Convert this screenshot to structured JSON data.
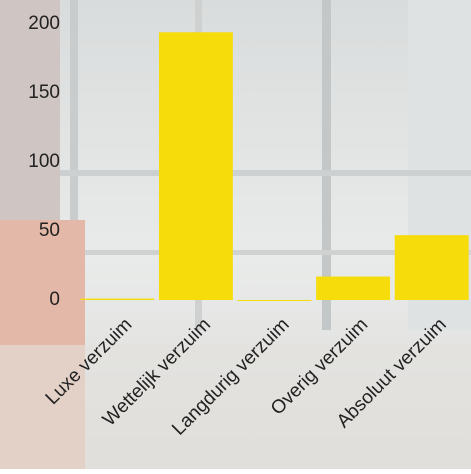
{
  "chart_data": {
    "type": "bar",
    "categories": [
      "Luxe verzuim",
      "Wettelijk verzuim",
      "Langdurig verzuim",
      "Overig verzuim",
      "Absoluut verzuim"
    ],
    "values": [
      1,
      194,
      0,
      17,
      47
    ],
    "color": "#f5dc0a",
    "ylim": [
      0,
      200
    ],
    "yticks": [
      0,
      50,
      100,
      150,
      200
    ],
    "grid": false
  }
}
